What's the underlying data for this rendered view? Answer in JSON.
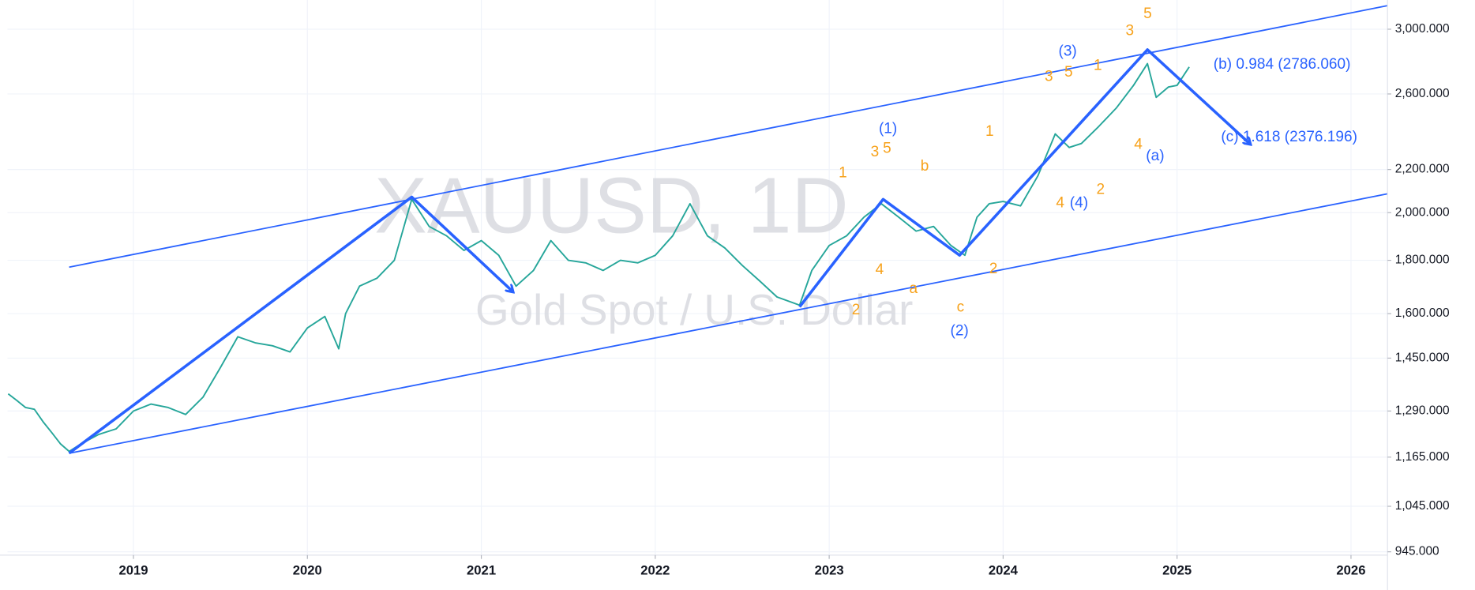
{
  "chart_data": {
    "type": "line",
    "watermark": {
      "title": "XAUUSD, 1D",
      "subtitle": "Gold Spot / U.S. Dollar"
    },
    "x": [
      2018.28,
      2018.33,
      2018.38,
      2018.43,
      2018.48,
      2018.53,
      2018.58,
      2018.63,
      2018.7,
      2018.8,
      2018.9,
      2019.0,
      2019.1,
      2019.2,
      2019.3,
      2019.4,
      2019.5,
      2019.6,
      2019.7,
      2019.8,
      2019.9,
      2020.0,
      2020.1,
      2020.18,
      2020.22,
      2020.3,
      2020.4,
      2020.5,
      2020.6,
      2020.7,
      2020.8,
      2020.9,
      2021.0,
      2021.1,
      2021.2,
      2021.3,
      2021.4,
      2021.5,
      2021.6,
      2021.7,
      2021.8,
      2021.9,
      2022.0,
      2022.1,
      2022.2,
      2022.3,
      2022.4,
      2022.5,
      2022.6,
      2022.7,
      2022.83,
      2022.9,
      2023.0,
      2023.1,
      2023.2,
      2023.3,
      2023.4,
      2023.5,
      2023.6,
      2023.7,
      2023.78,
      2023.85,
      2023.92,
      2024.0,
      2024.1,
      2024.2,
      2024.3,
      2024.38,
      2024.45,
      2024.55,
      2024.65,
      2024.75,
      2024.83,
      2024.88,
      2024.95,
      2025.0,
      2025.07
    ],
    "values": [
      1340,
      1320,
      1300,
      1295,
      1260,
      1230,
      1200,
      1180,
      1200,
      1225,
      1240,
      1290,
      1310,
      1300,
      1280,
      1330,
      1420,
      1520,
      1500,
      1490,
      1470,
      1550,
      1590,
      1480,
      1600,
      1700,
      1730,
      1800,
      2060,
      1940,
      1900,
      1840,
      1880,
      1820,
      1700,
      1760,
      1880,
      1800,
      1790,
      1760,
      1800,
      1790,
      1820,
      1900,
      2040,
      1900,
      1850,
      1780,
      1720,
      1660,
      1630,
      1760,
      1860,
      1900,
      1980,
      2040,
      1980,
      1920,
      1940,
      1860,
      1820,
      1980,
      2040,
      2050,
      2030,
      2170,
      2380,
      2310,
      2330,
      2420,
      2520,
      2650,
      2780,
      2580,
      2640,
      2650,
      2760
    ],
    "color": "#26a69a",
    "xlim": [
      2018.276,
      2026.21
    ],
    "ylim": [
      938,
      3200
    ],
    "log_scale": true,
    "grid": true,
    "xticks": [
      {
        "value": 2019,
        "label": "2019"
      },
      {
        "value": 2020,
        "label": "2020"
      },
      {
        "value": 2021,
        "label": "2021"
      },
      {
        "value": 2022,
        "label": "2022"
      },
      {
        "value": 2023,
        "label": "2023"
      },
      {
        "value": 2024,
        "label": "2024"
      },
      {
        "value": 2025,
        "label": "2025"
      },
      {
        "value": 2026,
        "label": "2026"
      }
    ],
    "yticks": [
      {
        "value": 945,
        "label": "945.000"
      },
      {
        "value": 1045,
        "label": "1,045.000"
      },
      {
        "value": 1165,
        "label": "1,165.000"
      },
      {
        "value": 1290,
        "label": "1,290.000"
      },
      {
        "value": 1450,
        "label": "1,450.000"
      },
      {
        "value": 1600,
        "label": "1,600.000"
      },
      {
        "value": 1800,
        "label": "1,800.000"
      },
      {
        "value": 2000,
        "label": "2,000.000"
      },
      {
        "value": 2200,
        "label": "2,200.000"
      },
      {
        "value": 2600,
        "label": "2,600.000"
      },
      {
        "value": 3000,
        "label": "3,000.000"
      }
    ],
    "channels": [
      {
        "color": "#2962ff",
        "x": [
          2018.63,
          2026.21
        ],
        "values": [
          1773,
          3160
        ]
      },
      {
        "color": "#2962ff",
        "x": [
          2018.63,
          2026.21
        ],
        "values": [
          1175,
          2085
        ]
      }
    ],
    "waves": [
      {
        "color": "#2962ff",
        "x": [
          2018.63,
          2020.6,
          2021.18
        ],
        "values": [
          1175,
          2070,
          1680
        ]
      },
      {
        "color": "#2962ff",
        "x": [
          2022.83,
          2023.31,
          2023.75,
          2024.83,
          2025.42
        ],
        "values": [
          1624,
          2060,
          1820,
          2867,
          2328
        ]
      }
    ],
    "annotations": [
      "(1)",
      "(2)",
      "(3)",
      "(4)",
      "(a)",
      "1",
      "2",
      "3",
      "5",
      "4",
      "b",
      "a",
      "c",
      "1",
      "2",
      "3",
      "5",
      "1",
      "2",
      "3",
      "5",
      "4",
      "4"
    ],
    "fib_labels": [
      "(b) 0.984 (2786.060)",
      "(c) 1.618 (2376.196)"
    ]
  }
}
